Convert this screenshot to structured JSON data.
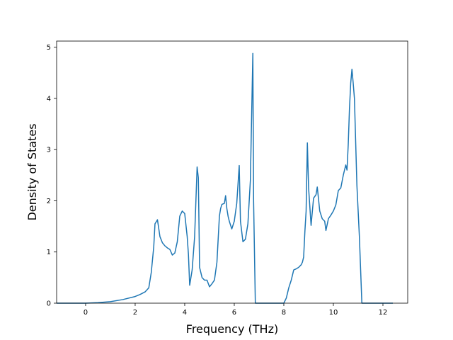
{
  "chart_data": {
    "type": "line",
    "title": "",
    "xlabel": "Frequency (THz)",
    "ylabel": "Density of States",
    "xlim": [
      -1.17,
      13.0
    ],
    "ylim": [
      0,
      5.12
    ],
    "xticks": [
      0,
      2,
      4,
      6,
      8,
      10,
      12
    ],
    "yticks": [
      0,
      1,
      2,
      3,
      4,
      5
    ],
    "grid": false,
    "legend": "none",
    "colors": {
      "line": "#1f77b4",
      "axes": "#000000",
      "background": "#ffffff"
    },
    "series": [
      {
        "x": [
          -1.17,
          -0.5,
          0.0,
          0.5,
          1.0,
          1.5,
          2.0,
          2.2,
          2.4,
          2.55,
          2.65,
          2.75,
          2.8,
          2.9,
          3.0,
          3.1,
          3.2,
          3.3,
          3.4,
          3.5,
          3.6,
          3.7,
          3.8,
          3.9,
          4.0,
          4.1,
          4.15,
          4.2,
          4.3,
          4.4,
          4.5,
          4.55,
          4.6,
          4.7,
          4.8,
          4.9,
          5.0,
          5.1,
          5.2,
          5.3,
          5.4,
          5.45,
          5.5,
          5.6,
          5.65,
          5.7,
          5.75,
          5.8,
          5.9,
          6.0,
          6.1,
          6.2,
          6.25,
          6.35,
          6.45,
          6.55,
          6.65,
          6.75,
          6.78,
          6.85,
          6.9,
          7.5,
          8.0,
          8.1,
          8.2,
          8.3,
          8.4,
          8.5,
          8.6,
          8.7,
          8.75,
          8.8,
          8.85,
          8.9,
          8.95,
          9.0,
          9.1,
          9.2,
          9.3,
          9.35,
          9.45,
          9.55,
          9.65,
          9.7,
          9.8,
          9.9,
          10.0,
          10.1,
          10.2,
          10.3,
          10.4,
          10.5,
          10.55,
          10.6,
          10.65,
          10.7,
          10.75,
          10.8,
          10.85,
          10.95,
          11.05,
          11.15,
          11.25,
          11.35,
          11.5,
          12.0,
          12.4
        ],
        "y": [
          0.0,
          0.0,
          0.0,
          0.01,
          0.03,
          0.07,
          0.13,
          0.17,
          0.22,
          0.3,
          0.6,
          1.1,
          1.55,
          1.63,
          1.3,
          1.18,
          1.12,
          1.08,
          1.05,
          0.94,
          0.98,
          1.2,
          1.7,
          1.8,
          1.75,
          1.3,
          0.95,
          0.35,
          0.65,
          1.3,
          2.66,
          2.45,
          0.7,
          0.5,
          0.45,
          0.45,
          0.32,
          0.38,
          0.45,
          0.8,
          1.7,
          1.85,
          1.93,
          1.95,
          2.1,
          1.85,
          1.7,
          1.6,
          1.45,
          1.6,
          1.95,
          2.69,
          1.6,
          1.2,
          1.25,
          1.55,
          2.4,
          4.88,
          2.0,
          0.0,
          0.0,
          0.0,
          0.0,
          0.1,
          0.3,
          0.45,
          0.65,
          0.67,
          0.7,
          0.75,
          0.8,
          0.9,
          1.4,
          1.8,
          3.13,
          2.25,
          1.52,
          2.05,
          2.12,
          2.27,
          1.8,
          1.65,
          1.6,
          1.42,
          1.65,
          1.72,
          1.8,
          1.92,
          2.2,
          2.25,
          2.5,
          2.7,
          2.6,
          3.1,
          3.8,
          4.3,
          4.57,
          4.3,
          4.0,
          2.3,
          1.3,
          0.0,
          0.0,
          0.0,
          0.0,
          0.0,
          0.0
        ]
      }
    ]
  }
}
